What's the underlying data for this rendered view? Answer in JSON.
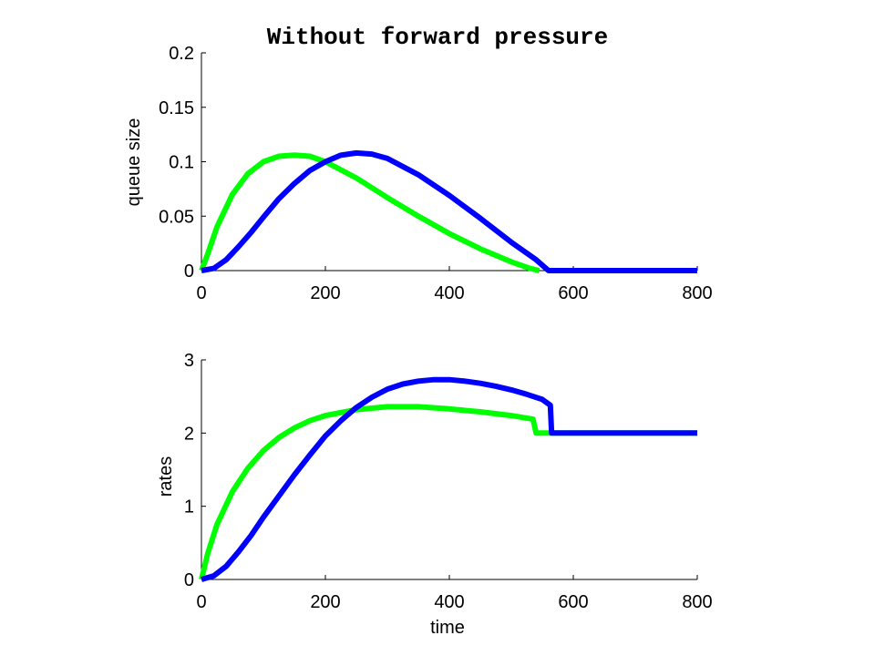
{
  "chart_data": [
    {
      "type": "line",
      "title": "Without forward pressure",
      "xlabel": "",
      "ylabel": "queue size",
      "xlim": [
        0,
        800
      ],
      "ylim": [
        0,
        0.2
      ],
      "xticks": [
        "0",
        "200",
        "400",
        "600",
        "800"
      ],
      "yticks": [
        "0",
        "0.05",
        "0.1",
        "0.15",
        "0.2"
      ],
      "xtick_values": [
        0,
        200,
        400,
        600,
        800
      ],
      "ytick_values": [
        0,
        0.05,
        0.1,
        0.15,
        0.2
      ],
      "grid": false,
      "series": [
        {
          "color": "#00ff00",
          "x": [
            0,
            10,
            25,
            50,
            75,
            100,
            125,
            150,
            175,
            200,
            250,
            300,
            350,
            400,
            450,
            500,
            530,
            545
          ],
          "y": [
            0,
            0.015,
            0.04,
            0.07,
            0.089,
            0.1,
            0.105,
            0.106,
            0.105,
            0.1,
            0.085,
            0.067,
            0.05,
            0.034,
            0.02,
            0.008,
            0.002,
            0
          ]
        },
        {
          "color": "#0000ff",
          "x": [
            0,
            20,
            40,
            60,
            80,
            100,
            125,
            150,
            175,
            200,
            225,
            250,
            275,
            300,
            350,
            400,
            450,
            500,
            540,
            560,
            800
          ],
          "y": [
            0,
            0.002,
            0.01,
            0.022,
            0.035,
            0.049,
            0.066,
            0.08,
            0.092,
            0.1,
            0.106,
            0.108,
            0.107,
            0.103,
            0.088,
            0.069,
            0.048,
            0.026,
            0.01,
            0,
            0
          ]
        }
      ]
    },
    {
      "type": "line",
      "title": "",
      "xlabel": "time",
      "ylabel": "rates",
      "xlim": [
        0,
        800
      ],
      "ylim": [
        0,
        3
      ],
      "xticks": [
        "0",
        "200",
        "400",
        "600",
        "800"
      ],
      "yticks": [
        "0",
        "1",
        "2",
        "3"
      ],
      "xtick_values": [
        0,
        200,
        400,
        600,
        800
      ],
      "ytick_values": [
        0,
        1,
        2,
        3
      ],
      "grid": false,
      "series": [
        {
          "color": "#00ff00",
          "x": [
            0,
            10,
            25,
            50,
            75,
            100,
            125,
            150,
            175,
            200,
            250,
            300,
            350,
            400,
            450,
            500,
            535,
            540,
            560,
            800
          ],
          "y": [
            0,
            0.35,
            0.75,
            1.2,
            1.52,
            1.76,
            1.94,
            2.07,
            2.17,
            2.24,
            2.32,
            2.36,
            2.36,
            2.33,
            2.29,
            2.24,
            2.19,
            2.0,
            2.0,
            2.0
          ]
        },
        {
          "color": "#0000ff",
          "x": [
            0,
            20,
            40,
            60,
            80,
            100,
            125,
            150,
            175,
            200,
            225,
            250,
            275,
            300,
            325,
            350,
            375,
            400,
            425,
            450,
            475,
            500,
            525,
            550,
            563,
            565,
            800
          ],
          "y": [
            0,
            0.05,
            0.18,
            0.38,
            0.6,
            0.85,
            1.14,
            1.43,
            1.7,
            1.96,
            2.17,
            2.35,
            2.49,
            2.6,
            2.67,
            2.71,
            2.73,
            2.73,
            2.71,
            2.68,
            2.64,
            2.59,
            2.53,
            2.46,
            2.38,
            2.0,
            2.0
          ]
        }
      ]
    }
  ]
}
